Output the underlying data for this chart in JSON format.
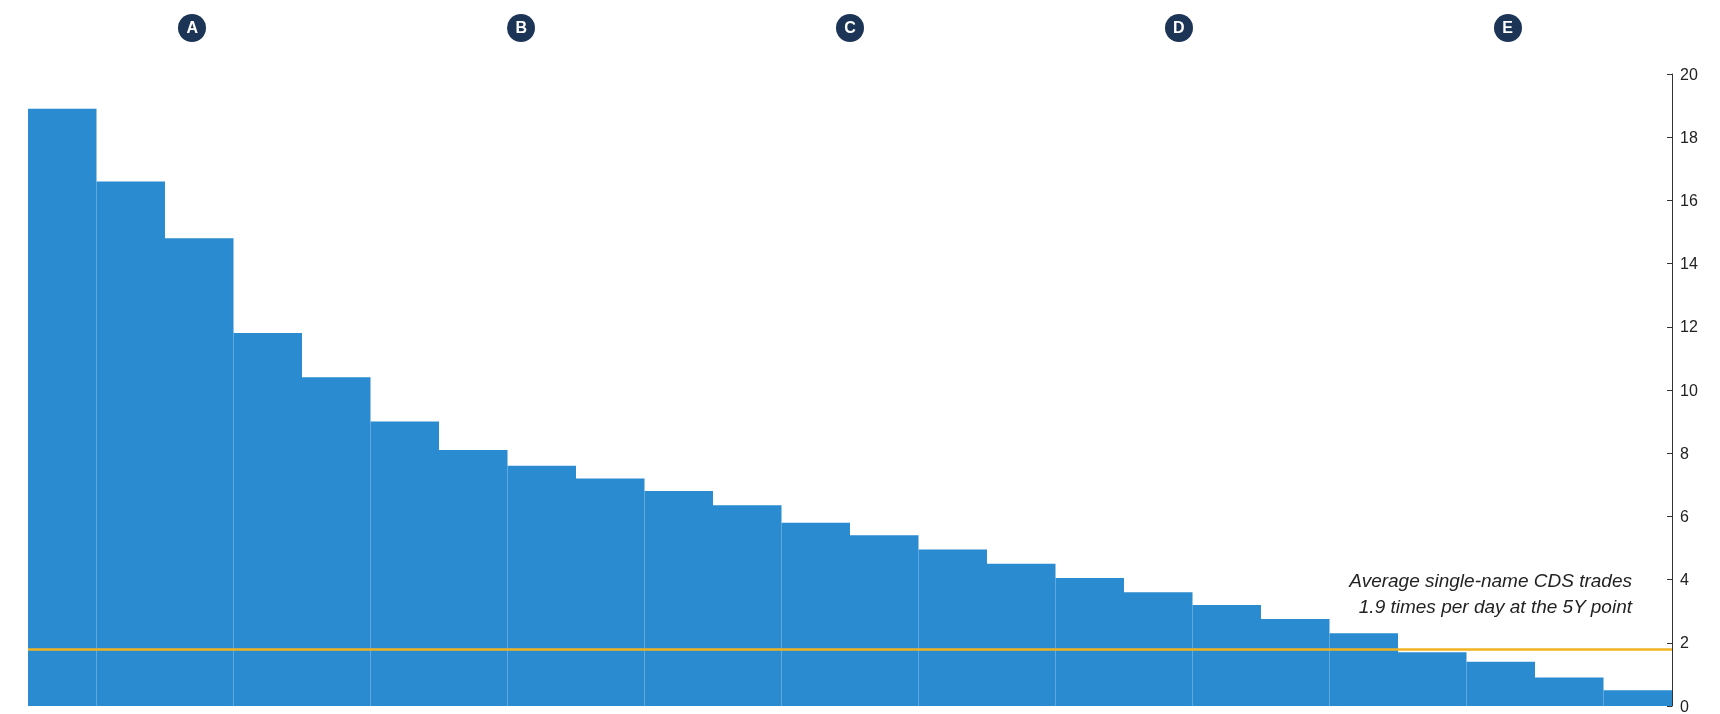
{
  "chart_data": {
    "type": "bar",
    "categories": [
      null,
      null,
      null,
      null,
      null,
      null,
      null,
      null,
      null,
      null,
      null,
      null,
      null,
      null,
      null,
      null,
      null,
      null,
      null,
      null,
      null,
      null,
      null,
      null
    ],
    "values": [
      18.9,
      16.6,
      14.8,
      11.8,
      10.4,
      9.0,
      8.1,
      7.6,
      7.2,
      6.8,
      6.35,
      5.8,
      5.4,
      4.95,
      4.5,
      4.05,
      3.6,
      3.2,
      2.75,
      2.3,
      1.7,
      1.4,
      0.9,
      0.5
    ],
    "color": "#2a8bd0",
    "ylim": [
      0,
      20
    ],
    "yticks": [
      0,
      2,
      4,
      6,
      8,
      10,
      12,
      14,
      16,
      18,
      20
    ],
    "tick_labels": "y",
    "grid": false,
    "ref_lines": [
      {
        "axis": "y",
        "value": 1.8,
        "label": "Average single-name CDS trades\n1.9 times per day at the 5Y point",
        "color": "#f0b323",
        "line_style": "solid"
      }
    ],
    "annotations": [
      "A",
      "B",
      "C",
      "D",
      "E"
    ]
  }
}
